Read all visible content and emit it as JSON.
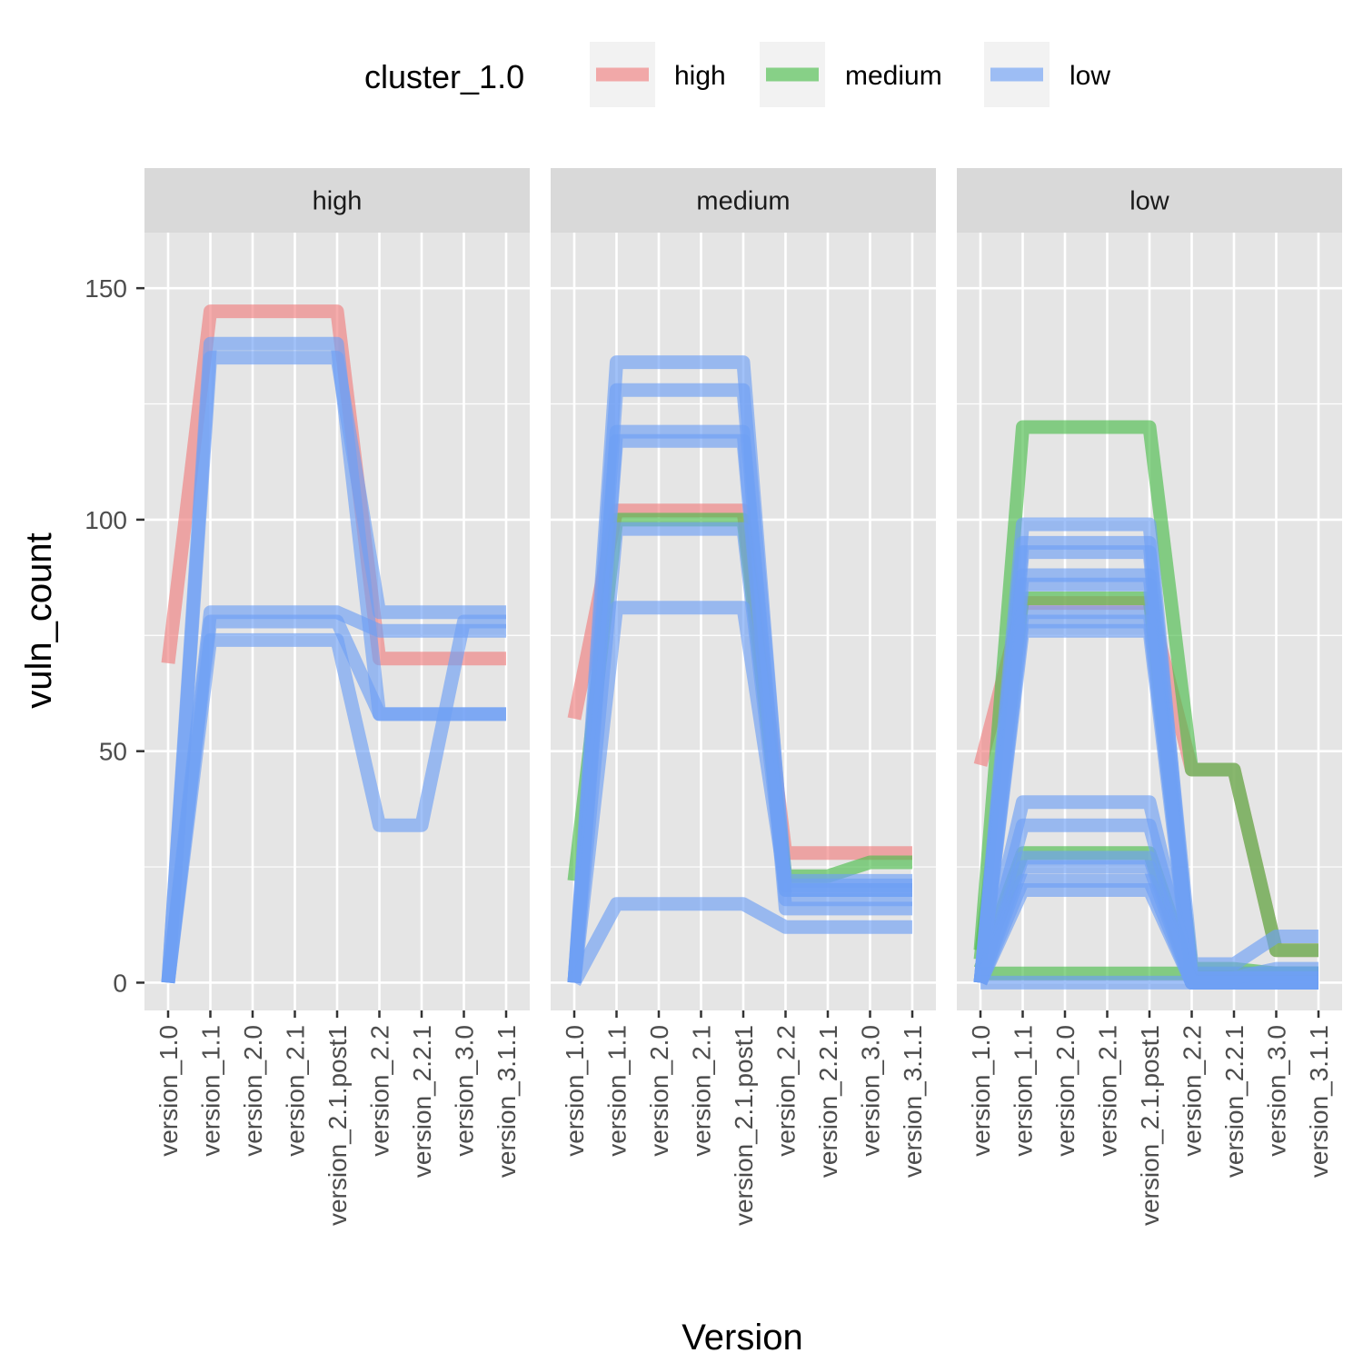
{
  "chart_data": {
    "type": "line",
    "xlabel": "Version",
    "ylabel": "vuln_count",
    "ylim": [
      -6,
      162
    ],
    "y_ticks": [
      0,
      50,
      100,
      150
    ],
    "categories": [
      "version_1.0",
      "version_1.1",
      "version_2.0",
      "version_2.1",
      "version_2.1.post1",
      "version_2.2",
      "version_2.2.1",
      "version_3.0",
      "version_3.1.1"
    ],
    "legend": {
      "title": "cluster_1.0",
      "placement": "top",
      "entries": [
        {
          "label": "high",
          "key": "high"
        },
        {
          "label": "medium",
          "key": "medium"
        },
        {
          "label": "low",
          "key": "low"
        }
      ]
    },
    "colors": {
      "high": "#f08080",
      "medium": "#4dbd4d",
      "low": "#6f9ff5"
    },
    "panels": [
      {
        "strip": "high",
        "series": [
          {
            "cluster": "high",
            "values": [
              69,
              145,
              145,
              145,
              145,
              70,
              70,
              70,
              70
            ]
          },
          {
            "cluster": "low",
            "values": [
              0,
              135,
              135,
              135,
              135,
              80,
              80,
              80,
              80
            ]
          },
          {
            "cluster": "low",
            "values": [
              0,
              138,
              138,
              138,
              138,
              58,
              58,
              58,
              58
            ]
          },
          {
            "cluster": "low",
            "values": [
              0,
              80,
              80,
              80,
              80,
              76,
              76,
              76,
              76
            ]
          },
          {
            "cluster": "low",
            "values": [
              0,
              78,
              78,
              78,
              78,
              58,
              58,
              58,
              58
            ]
          },
          {
            "cluster": "low",
            "values": [
              0,
              74,
              74,
              74,
              74,
              34,
              34,
              78,
              78
            ]
          }
        ]
      },
      {
        "strip": "medium",
        "series": [
          {
            "cluster": "high",
            "values": [
              57,
              102,
              102,
              102,
              102,
              28,
              28,
              28,
              28
            ]
          },
          {
            "cluster": "medium",
            "values": [
              22,
              100,
              100,
              100,
              100,
              23,
              23,
              26,
              26
            ]
          },
          {
            "cluster": "low",
            "values": [
              0,
              134,
              134,
              134,
              134,
              20,
              20,
              20,
              20
            ]
          },
          {
            "cluster": "low",
            "values": [
              0,
              128,
              128,
              128,
              128,
              22,
              22,
              22,
              22
            ]
          },
          {
            "cluster": "low",
            "values": [
              0,
              119,
              119,
              119,
              119,
              18,
              18,
              18,
              18
            ]
          },
          {
            "cluster": "low",
            "values": [
              0,
              117,
              117,
              117,
              117,
              16,
              16,
              16,
              16
            ]
          },
          {
            "cluster": "low",
            "values": [
              0,
              98,
              98,
              98,
              98,
              20,
              20,
              20,
              20
            ]
          },
          {
            "cluster": "low",
            "values": [
              0,
              81,
              81,
              81,
              81,
              21,
              21,
              21,
              21
            ]
          },
          {
            "cluster": "low",
            "values": [
              0,
              17,
              17,
              17,
              17,
              12,
              12,
              12,
              12
            ]
          }
        ]
      },
      {
        "strip": "low",
        "series": [
          {
            "cluster": "high",
            "values": [
              47,
              82,
              82,
              82,
              82,
              46,
              46,
              7,
              7
            ]
          },
          {
            "cluster": "medium",
            "values": [
              7,
              120,
              120,
              120,
              120,
              46,
              46,
              7,
              7
            ]
          },
          {
            "cluster": "medium",
            "values": [
              5,
              83,
              83,
              83,
              83,
              3,
              3,
              2,
              2
            ]
          },
          {
            "cluster": "medium",
            "values": [
              3,
              28,
              28,
              28,
              28,
              1,
              1,
              2,
              2
            ]
          },
          {
            "cluster": "medium",
            "values": [
              2,
              2,
              2,
              2,
              2,
              2,
              2,
              2,
              2
            ]
          },
          {
            "cluster": "low",
            "values": [
              0,
              99,
              99,
              99,
              99,
              0,
              0,
              0,
              0
            ]
          },
          {
            "cluster": "low",
            "values": [
              0,
              95,
              95,
              95,
              95,
              4,
              4,
              10,
              10
            ]
          },
          {
            "cluster": "low",
            "values": [
              0,
              93,
              93,
              93,
              93,
              1,
              1,
              1,
              1
            ]
          },
          {
            "cluster": "low",
            "values": [
              0,
              88,
              88,
              88,
              88,
              0,
              0,
              0,
              0
            ]
          },
          {
            "cluster": "low",
            "values": [
              0,
              86,
              86,
              86,
              86,
              1,
              1,
              1,
              1
            ]
          },
          {
            "cluster": "low",
            "values": [
              0,
              80,
              80,
              80,
              80,
              0,
              0,
              0,
              0
            ]
          },
          {
            "cluster": "low",
            "values": [
              0,
              78,
              78,
              78,
              78,
              2,
              2,
              2,
              2
            ]
          },
          {
            "cluster": "low",
            "values": [
              0,
              76,
              76,
              76,
              76,
              0,
              0,
              0,
              0
            ]
          },
          {
            "cluster": "low",
            "values": [
              0,
              39,
              39,
              39,
              39,
              0,
              0,
              0,
              0
            ]
          },
          {
            "cluster": "low",
            "values": [
              0,
              34,
              34,
              34,
              34,
              1,
              1,
              3,
              3
            ]
          },
          {
            "cluster": "low",
            "values": [
              0,
              27,
              27,
              27,
              27,
              0,
              0,
              0,
              0
            ]
          },
          {
            "cluster": "low",
            "values": [
              0,
              25,
              25,
              25,
              25,
              0,
              0,
              0,
              0
            ]
          },
          {
            "cluster": "low",
            "values": [
              0,
              22,
              22,
              22,
              22,
              0,
              0,
              0,
              0
            ]
          },
          {
            "cluster": "low",
            "values": [
              0,
              20,
              20,
              20,
              20,
              0,
              0,
              0,
              0
            ]
          },
          {
            "cluster": "low",
            "values": [
              0,
              0,
              0,
              0,
              0,
              0,
              0,
              0,
              0
            ]
          }
        ]
      }
    ]
  }
}
